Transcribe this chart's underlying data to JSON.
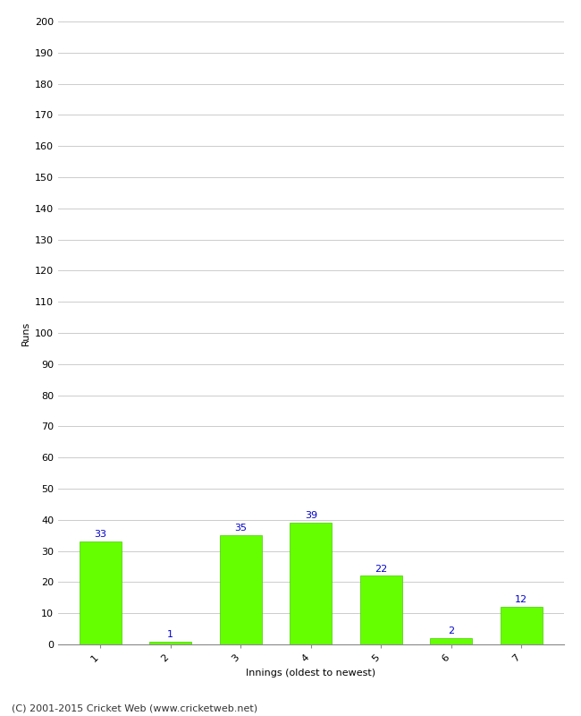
{
  "categories": [
    "1",
    "2",
    "3",
    "4",
    "5",
    "6",
    "7"
  ],
  "values": [
    33,
    1,
    35,
    39,
    22,
    2,
    12
  ],
  "bar_color": "#66ff00",
  "bar_edge_color": "#44cc00",
  "ylabel": "Runs",
  "xlabel": "Innings (oldest to newest)",
  "ylim": [
    0,
    200
  ],
  "ytick_step": 10,
  "label_color": "#0000cc",
  "label_fontsize": 8,
  "axis_fontsize": 8,
  "tick_fontsize": 8,
  "footer_text": "(C) 2001-2015 Cricket Web (www.cricketweb.net)",
  "footer_fontsize": 8,
  "background_color": "#ffffff",
  "grid_color": "#cccccc"
}
